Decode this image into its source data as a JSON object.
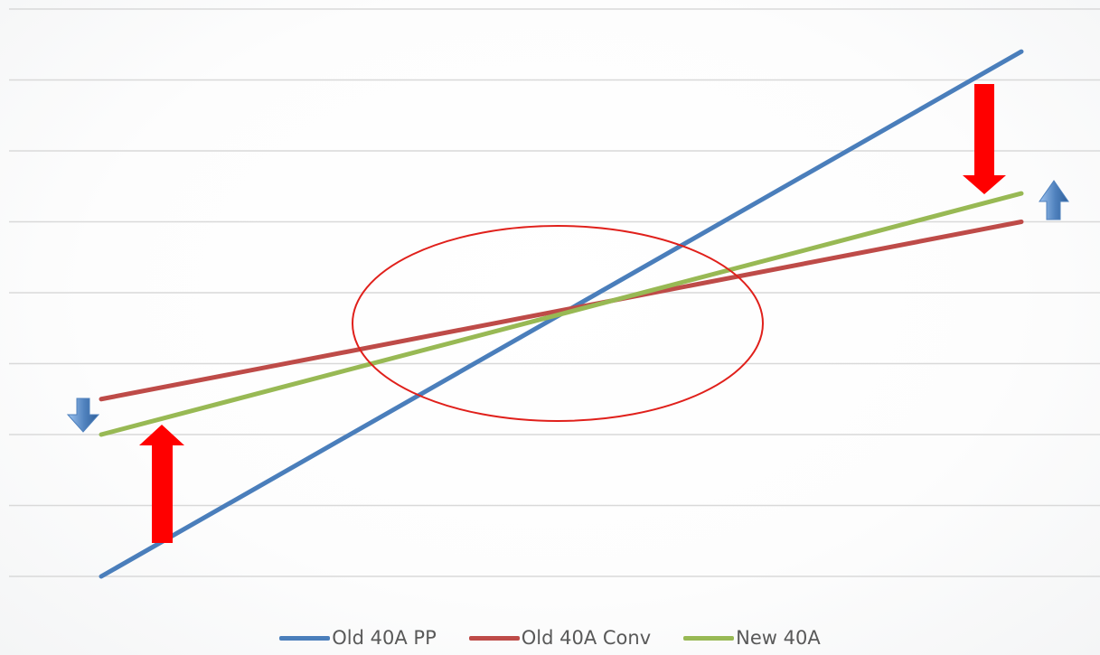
{
  "chart_data": {
    "type": "line",
    "x": [
      0,
      1
    ],
    "ylim": [
      0,
      8
    ],
    "grid": true,
    "legend_position": "bottom",
    "series": [
      {
        "name": "Old 40A PP",
        "color": "#4A7EBB",
        "values": [
          0,
          7.4
        ]
      },
      {
        "name": "Old 40A Conv",
        "color": "#BE4B48",
        "values": [
          2.5,
          5.0
        ]
      },
      {
        "name": "New 40A",
        "color": "#98B954",
        "values": [
          2.0,
          5.4
        ]
      }
    ],
    "annotations": {
      "ellipse_color": "#E0201B",
      "red_arrow_color": "#FF0000",
      "blue_arrow_color": "#4F81BD"
    }
  }
}
